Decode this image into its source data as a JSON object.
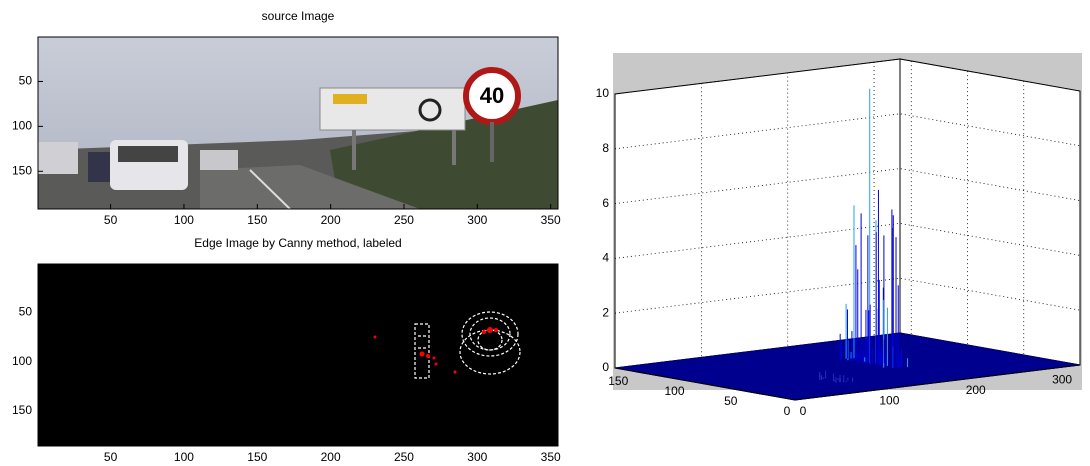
{
  "chart_data": [
    {
      "type": "image",
      "title": "source Image",
      "xlim": [
        0.5,
        355
      ],
      "ylim": [
        0.5,
        192
      ],
      "xticks": [
        50,
        100,
        150,
        200,
        250,
        300,
        350
      ],
      "yticks": [
        50,
        100,
        150
      ]
    },
    {
      "type": "image",
      "title": "Edge Image by Canny method, labeled",
      "xlim": [
        0.5,
        355
      ],
      "ylim": [
        0.5,
        186
      ],
      "xticks": [
        50,
        100,
        150,
        200,
        250,
        300,
        350
      ],
      "yticks": [
        50,
        100,
        150
      ]
    },
    {
      "type": "surface",
      "xlim": [
        0,
        330
      ],
      "ylim": [
        0,
        160
      ],
      "zlim": [
        0,
        10
      ],
      "xticks": [
        0,
        100,
        200,
        300
      ],
      "yticks": [
        0,
        50,
        100,
        150
      ],
      "zticks": [
        0,
        2,
        4,
        6,
        8,
        10
      ],
      "grid": true
    }
  ]
}
